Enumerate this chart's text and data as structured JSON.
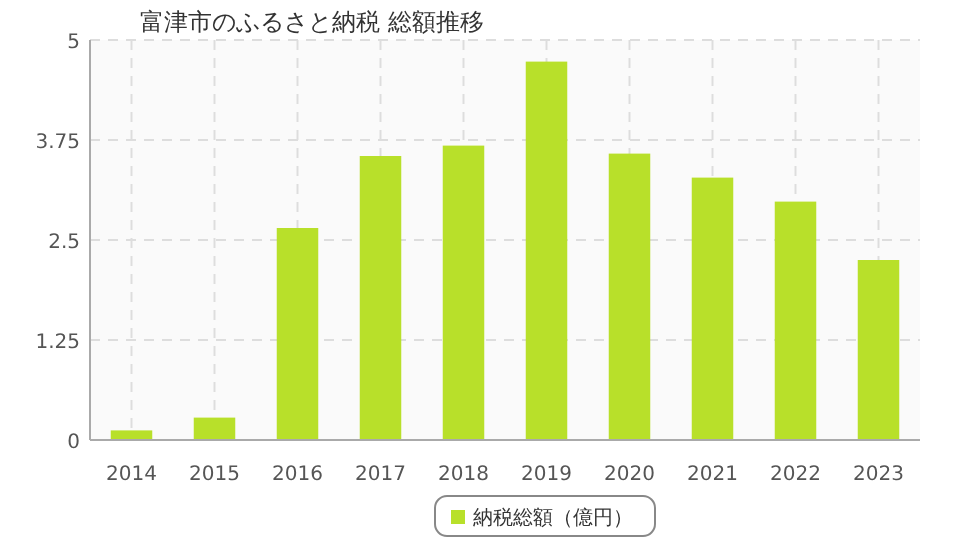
{
  "chart_data": {
    "type": "bar",
    "title": "富津市のふるさと納税  総額推移",
    "categories": [
      "2014",
      "2015",
      "2016",
      "2017",
      "2018",
      "2019",
      "2020",
      "2021",
      "2022",
      "2023"
    ],
    "series": [
      {
        "name": "納税総額（億円）",
        "color": "#b8e02a",
        "values": [
          0.12,
          0.28,
          2.65,
          3.55,
          3.68,
          4.73,
          3.58,
          3.28,
          2.98,
          2.25
        ]
      }
    ],
    "ylim": [
      0,
      5
    ],
    "yticks": [
      0,
      1.25,
      2.5,
      3.75,
      5
    ],
    "grid": true,
    "legend": "bottom"
  }
}
